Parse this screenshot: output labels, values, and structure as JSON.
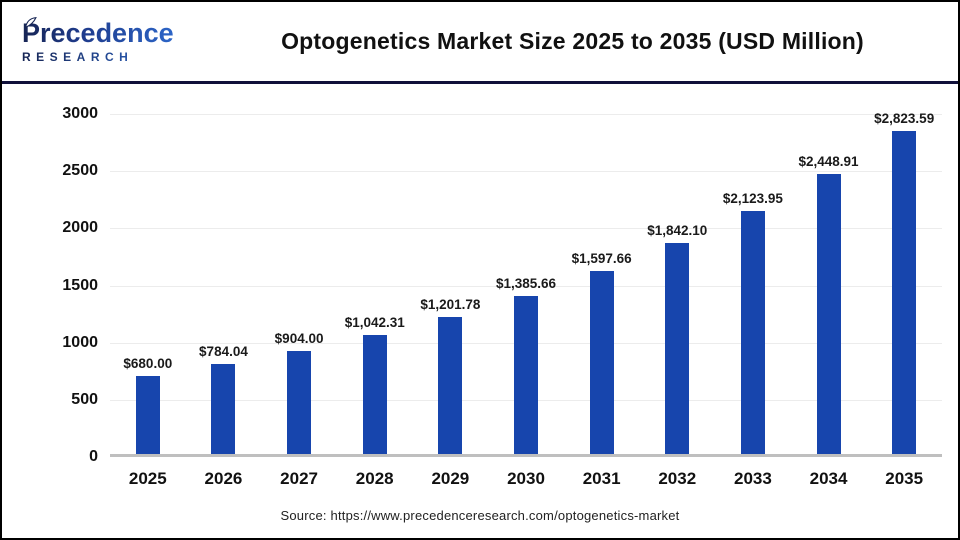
{
  "header": {
    "title": "Optogenetics Market Size 2025 to 2035 (USD Million)",
    "logo": {
      "line1": "Precedence",
      "line2": "RESEARCH"
    }
  },
  "chart_data": {
    "type": "bar",
    "title": "Optogenetics Market Size 2025 to 2035 (USD Million)",
    "categories": [
      "2025",
      "2026",
      "2027",
      "2028",
      "2029",
      "2030",
      "2031",
      "2032",
      "2033",
      "2034",
      "2035"
    ],
    "values": [
      680.0,
      784.04,
      904.0,
      1042.31,
      1201.78,
      1385.66,
      1597.66,
      1842.1,
      2123.95,
      2448.91,
      2823.59
    ],
    "value_labels": [
      "$680.00",
      "$784.04",
      "$904.00",
      "$1,042.31",
      "$1,201.78",
      "$1,385.66",
      "$1,597.66",
      "$1,842.10",
      "$2,123.95",
      "$2,448.91",
      "$2,823.59"
    ],
    "xlabel": "",
    "ylabel": "",
    "ylim": [
      0,
      3000
    ],
    "yticks": [
      0,
      500,
      1000,
      1500,
      2000,
      2500,
      3000
    ],
    "grid": true,
    "legend": "none",
    "bar_color": "#1745ad"
  },
  "footer": {
    "source": "Source: https://www.precedenceresearch.com/optogenetics-market"
  },
  "colors": {
    "bar": "#1745ad",
    "gridline": "#ececec",
    "axis_baseline": "#bfbfbf",
    "header_divider": "#10103a",
    "text": "#111111",
    "logo_dark": "#172554",
    "logo_blue": "#2e6bd0"
  }
}
